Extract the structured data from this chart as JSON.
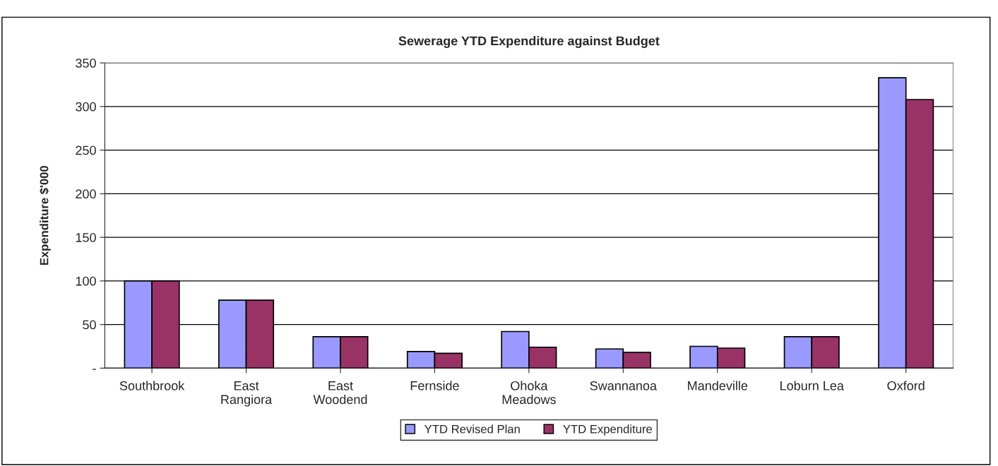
{
  "chart_data": {
    "type": "bar",
    "title": "Sewerage YTD Expenditure against Budget",
    "ylabel": "Expenditure $'000",
    "categories": [
      "Southbrook",
      "East\nRangiora",
      "East\nWoodend",
      "Fernside",
      "Ohoka\nMeadows",
      "Swannanoa",
      "Mandeville",
      "Loburn Lea",
      "Oxford"
    ],
    "series": [
      {
        "name": "YTD Revised Plan",
        "color": "#9999ff",
        "values": [
          100,
          78,
          36,
          19,
          42,
          22,
          25,
          36,
          333
        ]
      },
      {
        "name": "YTD Expenditure",
        "color": "#993366",
        "values": [
          100,
          78,
          36,
          17,
          24,
          18,
          23,
          36,
          308
        ]
      }
    ],
    "ylim": [
      0,
      350
    ],
    "yticks": [
      {
        "value": 0,
        "label": "-"
      },
      50,
      100,
      150,
      200,
      250,
      300,
      350
    ],
    "grid": "y",
    "legend": "bottom"
  }
}
